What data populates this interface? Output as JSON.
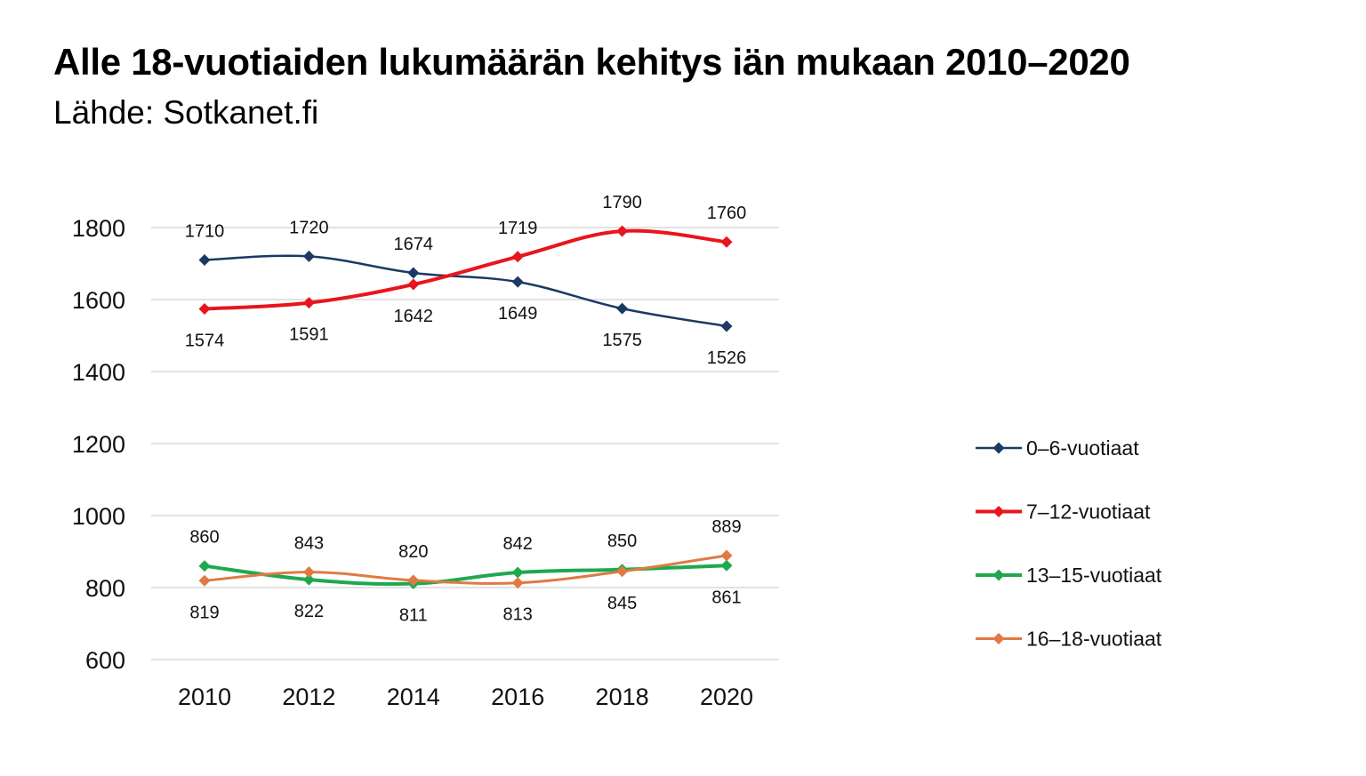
{
  "title": "Alle 18-vuotiaiden lukumäärän kehitys iän mukaan 2010–2020",
  "subtitle": "Lähde: Sotkanet.fi",
  "chart_data": {
    "type": "line",
    "title": "Alle 18-vuotiaiden lukumäärän kehitys iän mukaan 2010–2020",
    "subtitle": "Lähde: Sotkanet.fi",
    "categories": [
      "2010",
      "2012",
      "2014",
      "2016",
      "2018",
      "2020"
    ],
    "ylim": [
      600,
      1800
    ],
    "yticks": [
      600,
      800,
      1000,
      1200,
      1400,
      1600,
      1800
    ],
    "grid": true,
    "legend_position": "right",
    "smooth": true,
    "marker": "diamond",
    "series": [
      {
        "name": "0–6-vuotiaat",
        "color": "#1b3a63",
        "width": 2.5,
        "values": [
          1710,
          1720,
          1674,
          1649,
          1575,
          1526
        ],
        "label_pos": [
          "above",
          "above",
          "above",
          "below",
          "below",
          "below"
        ]
      },
      {
        "name": "7–12-vuotiaat",
        "color": "#e8151c",
        "width": 4,
        "values": [
          1574,
          1591,
          1642,
          1719,
          1790,
          1760
        ],
        "label_pos": [
          "below",
          "below",
          "below",
          "above",
          "above",
          "above"
        ]
      },
      {
        "name": "13–15-vuotiaat",
        "color": "#1fa84f",
        "width": 4,
        "values": [
          860,
          822,
          811,
          842,
          850,
          861
        ],
        "label_pos": [
          "above",
          "below",
          "below",
          "above",
          "above",
          "below"
        ]
      },
      {
        "name": "16–18-vuotiaat",
        "color": "#e07a43",
        "width": 3,
        "values": [
          819,
          843,
          820,
          813,
          845,
          889
        ],
        "label_pos": [
          "below",
          "above",
          "above",
          "below",
          "below",
          "above"
        ]
      }
    ]
  }
}
